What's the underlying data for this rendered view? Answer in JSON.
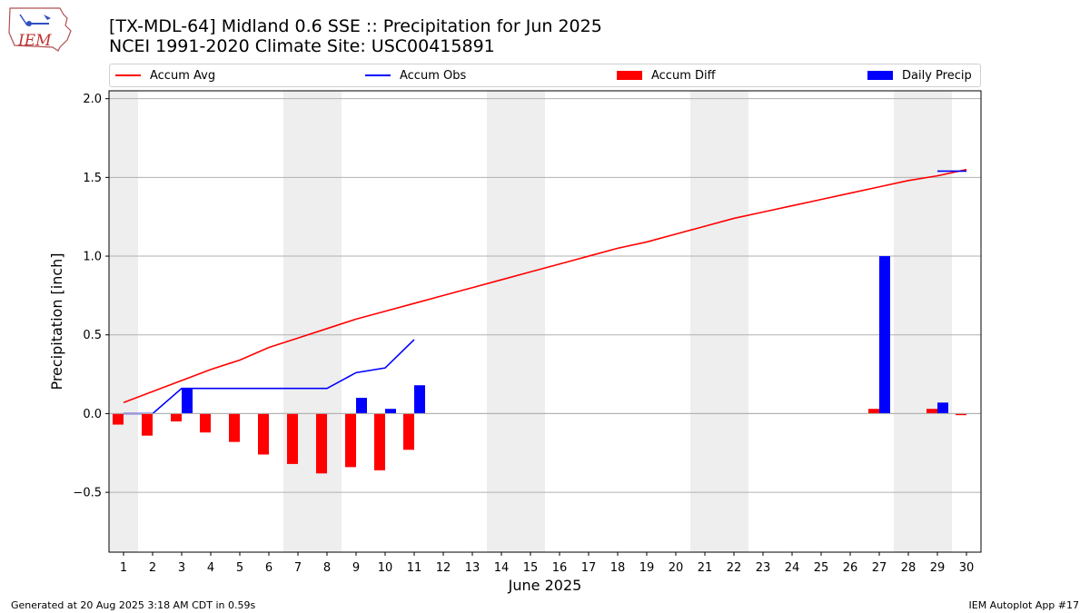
{
  "header": {
    "title_line1": "[TX-MDL-64] Midland 0.6 SSE :: Precipitation for Jun 2025",
    "title_line2": "NCEI 1991-2020 Climate Site: USC00415891",
    "logo_text": "IEM"
  },
  "footer": {
    "generated": "Generated at 20 Aug 2025 3:18 AM CDT in 0.59s",
    "app": "IEM Autoplot App #17"
  },
  "colors": {
    "avg": "#ff0000",
    "obs": "#0000ff",
    "diff": "#ff0000",
    "daily": "#0000ff",
    "weekend_shade": "#eeeeee",
    "grid": "#b0b0b0"
  },
  "chart_data": {
    "type": "bar",
    "xlabel": "June 2025",
    "ylabel": "Precipitation [inch]",
    "ylim": [
      -0.88,
      2.05
    ],
    "xlim": [
      0.5,
      30.5
    ],
    "yticks": [
      -0.5,
      0.0,
      0.5,
      1.0,
      1.5,
      2.0
    ],
    "ytick_labels": [
      "−0.5",
      "0.0",
      "0.5",
      "1.0",
      "1.5",
      "2.0"
    ],
    "grid": "horizontal",
    "days": [
      1,
      2,
      3,
      4,
      5,
      6,
      7,
      8,
      9,
      10,
      11,
      12,
      13,
      14,
      15,
      16,
      17,
      18,
      19,
      20,
      21,
      22,
      23,
      24,
      25,
      26,
      27,
      28,
      29,
      30
    ],
    "shaded_days": [
      1,
      7,
      8,
      14,
      15,
      21,
      22,
      28,
      29
    ],
    "legend": [
      "Accum Avg",
      "Accum Obs",
      "Accum Diff",
      "Daily Precip"
    ],
    "legend_position": "top",
    "series": [
      {
        "name": "Accum Avg",
        "kind": "line",
        "values": [
          0.07,
          0.14,
          0.21,
          0.28,
          0.34,
          0.42,
          0.48,
          0.54,
          0.6,
          0.65,
          0.7,
          0.75,
          0.8,
          0.85,
          0.9,
          0.95,
          1.0,
          1.05,
          1.09,
          1.14,
          1.19,
          1.24,
          1.28,
          1.32,
          1.36,
          1.4,
          1.44,
          1.48,
          1.51,
          1.55
        ]
      },
      {
        "name": "Accum Obs",
        "kind": "line",
        "values": [
          0.0,
          0.0,
          0.16,
          0.16,
          0.16,
          0.16,
          0.16,
          0.16,
          0.26,
          0.29,
          0.47
        ]
      },
      {
        "name": "Accum Obs (late)",
        "kind": "line",
        "x": [
          29,
          30
        ],
        "values": [
          1.54,
          1.54
        ]
      },
      {
        "name": "Accum Diff",
        "kind": "bar",
        "x": [
          1,
          2,
          3,
          4,
          5,
          6,
          7,
          8,
          9,
          10,
          11,
          27,
          29,
          30
        ],
        "values": [
          -0.07,
          -0.14,
          -0.05,
          -0.12,
          -0.18,
          -0.26,
          -0.32,
          -0.38,
          -0.34,
          -0.36,
          -0.23,
          0.03,
          0.03,
          -0.01
        ]
      },
      {
        "name": "Daily Precip",
        "kind": "bar",
        "x": [
          3,
          9,
          10,
          11,
          27,
          29
        ],
        "values": [
          0.16,
          0.1,
          0.03,
          0.18,
          1.0,
          0.07
        ]
      }
    ]
  }
}
